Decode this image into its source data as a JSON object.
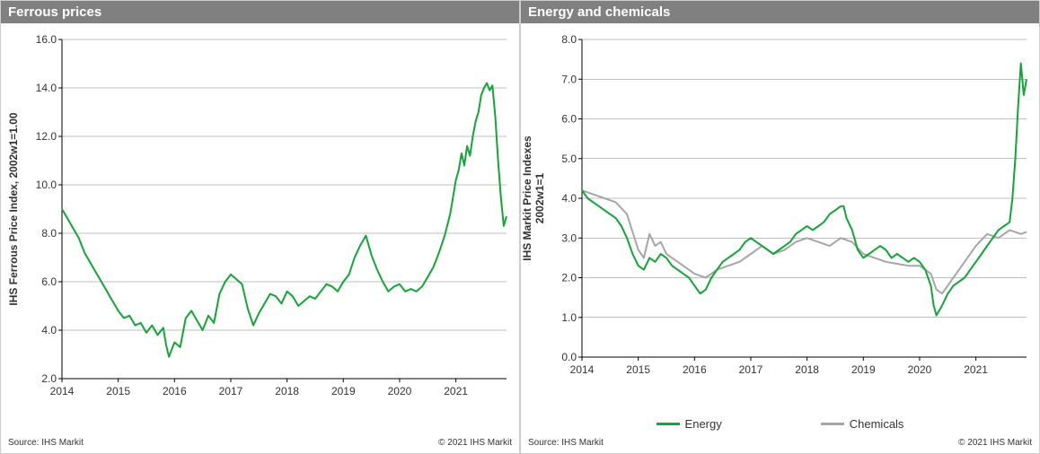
{
  "panels": {
    "ferrous": {
      "title": "Ferrous prices",
      "type": "line",
      "yaxis_label": "IHS Ferrous Price Index, 2002w1=1.00",
      "axis_color": "#000000",
      "grid_color": "#808080",
      "background_color": "#ffffff",
      "title_bg": "#808080",
      "title_color": "#ffffff",
      "line_color": "#13a538",
      "line_width": 2,
      "title_fontsize": 15,
      "axis_fontsize": 12,
      "tick_fontsize": 12,
      "xlim": [
        2014,
        2021.9
      ],
      "ylim": [
        2.0,
        16.0
      ],
      "xticks": [
        2014,
        2015,
        2016,
        2017,
        2018,
        2019,
        2020,
        2021
      ],
      "xticklabels": [
        "2014",
        "2015",
        "2016",
        "2017",
        "2018",
        "2019",
        "2020",
        "2021"
      ],
      "yticks": [
        2.0,
        4.0,
        6.0,
        8.0,
        10.0,
        12.0,
        14.0,
        16.0
      ],
      "yticklabels": [
        "2.0",
        "4.0",
        "6.0",
        "8.0",
        "10.0",
        "12.0",
        "14.0",
        "16.0"
      ],
      "series": [
        {
          "name": "Ferrous",
          "color": "#13a538",
          "x": [
            2014.0,
            2014.1,
            2014.2,
            2014.3,
            2014.4,
            2014.5,
            2014.6,
            2014.7,
            2014.8,
            2014.9,
            2015.0,
            2015.1,
            2015.2,
            2015.3,
            2015.4,
            2015.5,
            2015.6,
            2015.7,
            2015.8,
            2015.85,
            2015.9,
            2016.0,
            2016.1,
            2016.2,
            2016.3,
            2016.4,
            2016.5,
            2016.6,
            2016.7,
            2016.8,
            2016.9,
            2017.0,
            2017.1,
            2017.2,
            2017.3,
            2017.4,
            2017.5,
            2017.6,
            2017.7,
            2017.8,
            2017.9,
            2018.0,
            2018.1,
            2018.2,
            2018.3,
            2018.4,
            2018.5,
            2018.6,
            2018.7,
            2018.8,
            2018.9,
            2019.0,
            2019.1,
            2019.2,
            2019.3,
            2019.4,
            2019.5,
            2019.6,
            2019.7,
            2019.8,
            2019.9,
            2020.0,
            2020.1,
            2020.2,
            2020.3,
            2020.4,
            2020.5,
            2020.6,
            2020.7,
            2020.8,
            2020.9,
            2021.0,
            2021.05,
            2021.1,
            2021.15,
            2021.2,
            2021.25,
            2021.3,
            2021.35,
            2021.4,
            2021.45,
            2021.5,
            2021.55,
            2021.6,
            2021.65,
            2021.7,
            2021.75,
            2021.8,
            2021.85,
            2021.9
          ],
          "y": [
            9.0,
            8.6,
            8.2,
            7.8,
            7.2,
            6.8,
            6.4,
            6.0,
            5.6,
            5.2,
            4.8,
            4.5,
            4.6,
            4.2,
            4.3,
            3.9,
            4.2,
            3.8,
            4.1,
            3.4,
            2.9,
            3.5,
            3.3,
            4.5,
            4.8,
            4.4,
            4.0,
            4.6,
            4.3,
            5.5,
            6.0,
            6.3,
            6.1,
            5.9,
            4.9,
            4.2,
            4.7,
            5.1,
            5.5,
            5.4,
            5.1,
            5.6,
            5.4,
            5.0,
            5.2,
            5.4,
            5.3,
            5.6,
            5.9,
            5.8,
            5.6,
            6.0,
            6.3,
            7.0,
            7.5,
            7.9,
            7.1,
            6.5,
            6.0,
            5.6,
            5.8,
            5.9,
            5.6,
            5.7,
            5.6,
            5.8,
            6.2,
            6.6,
            7.2,
            7.9,
            8.8,
            10.2,
            10.6,
            11.3,
            10.8,
            11.6,
            11.2,
            12.0,
            12.6,
            13.0,
            13.7,
            14.0,
            14.2,
            13.9,
            14.1,
            12.8,
            11.0,
            9.5,
            8.3,
            8.7
          ]
        }
      ],
      "source_label": "Source: IHS Markit",
      "copyright_label": "© 2021 IHS Markit"
    },
    "energy": {
      "title": "Energy and chemicals",
      "type": "line",
      "yaxis_label": "IHS Markit Price Indexes\n2002w1=1",
      "axis_color": "#000000",
      "grid_color": "#808080",
      "background_color": "#ffffff",
      "title_bg": "#808080",
      "title_color": "#ffffff",
      "line_width": 2,
      "title_fontsize": 15,
      "axis_fontsize": 12,
      "tick_fontsize": 12,
      "xlim": [
        2014,
        2021.9
      ],
      "ylim": [
        0.0,
        8.0
      ],
      "xticks": [
        2014,
        2015,
        2016,
        2017,
        2018,
        2019,
        2020,
        2021
      ],
      "xticklabels": [
        "2014",
        "2015",
        "2016",
        "2017",
        "2018",
        "2019",
        "2020",
        "2021"
      ],
      "yticks": [
        0.0,
        1.0,
        2.0,
        3.0,
        4.0,
        5.0,
        6.0,
        7.0,
        8.0
      ],
      "yticklabels": [
        "0.0",
        "1.0",
        "2.0",
        "3.0",
        "4.0",
        "5.0",
        "6.0",
        "7.0",
        "8.0"
      ],
      "legend": [
        {
          "label": "Energy",
          "color": "#13a538"
        },
        {
          "label": "Chemicals",
          "color": "#a6a6a6"
        }
      ],
      "series": [
        {
          "name": "Chemicals",
          "color": "#a6a6a6",
          "x": [
            2014.0,
            2014.2,
            2014.4,
            2014.6,
            2014.8,
            2015.0,
            2015.1,
            2015.2,
            2015.3,
            2015.4,
            2015.5,
            2015.6,
            2015.8,
            2016.0,
            2016.2,
            2016.4,
            2016.6,
            2016.8,
            2017.0,
            2017.2,
            2017.4,
            2017.6,
            2017.8,
            2018.0,
            2018.2,
            2018.4,
            2018.6,
            2018.8,
            2019.0,
            2019.2,
            2019.4,
            2019.6,
            2019.8,
            2020.0,
            2020.2,
            2020.3,
            2020.4,
            2020.5,
            2020.6,
            2020.8,
            2021.0,
            2021.2,
            2021.4,
            2021.6,
            2021.8,
            2021.9
          ],
          "y": [
            4.2,
            4.1,
            4.0,
            3.9,
            3.6,
            2.7,
            2.5,
            3.1,
            2.8,
            2.9,
            2.6,
            2.5,
            2.3,
            2.1,
            2.0,
            2.2,
            2.3,
            2.4,
            2.6,
            2.8,
            2.6,
            2.7,
            2.9,
            3.0,
            2.9,
            2.8,
            3.0,
            2.9,
            2.6,
            2.5,
            2.4,
            2.35,
            2.3,
            2.3,
            2.1,
            1.7,
            1.6,
            1.8,
            2.0,
            2.4,
            2.8,
            3.1,
            3.0,
            3.2,
            3.1,
            3.15
          ]
        },
        {
          "name": "Energy",
          "color": "#13a538",
          "x": [
            2014.0,
            2014.1,
            2014.2,
            2014.3,
            2014.4,
            2014.5,
            2014.6,
            2014.7,
            2014.8,
            2014.9,
            2015.0,
            2015.1,
            2015.2,
            2015.3,
            2015.4,
            2015.5,
            2015.6,
            2015.7,
            2015.8,
            2015.9,
            2016.0,
            2016.1,
            2016.2,
            2016.3,
            2016.4,
            2016.5,
            2016.6,
            2016.7,
            2016.8,
            2016.9,
            2017.0,
            2017.1,
            2017.2,
            2017.3,
            2017.4,
            2017.5,
            2017.6,
            2017.7,
            2017.8,
            2017.9,
            2018.0,
            2018.1,
            2018.2,
            2018.3,
            2018.4,
            2018.5,
            2018.6,
            2018.65,
            2018.7,
            2018.8,
            2018.9,
            2019.0,
            2019.1,
            2019.2,
            2019.3,
            2019.4,
            2019.5,
            2019.6,
            2019.7,
            2019.8,
            2019.9,
            2020.0,
            2020.1,
            2020.2,
            2020.25,
            2020.3,
            2020.4,
            2020.5,
            2020.6,
            2020.7,
            2020.8,
            2020.9,
            2021.0,
            2021.1,
            2021.2,
            2021.3,
            2021.4,
            2021.5,
            2021.55,
            2021.6,
            2021.65,
            2021.7,
            2021.75,
            2021.8,
            2021.85,
            2021.9
          ],
          "y": [
            4.2,
            4.0,
            3.9,
            3.8,
            3.7,
            3.6,
            3.5,
            3.3,
            3.0,
            2.6,
            2.3,
            2.2,
            2.5,
            2.4,
            2.6,
            2.5,
            2.3,
            2.2,
            2.1,
            2.0,
            1.8,
            1.6,
            1.7,
            2.0,
            2.2,
            2.4,
            2.5,
            2.6,
            2.7,
            2.9,
            3.0,
            2.9,
            2.8,
            2.7,
            2.6,
            2.7,
            2.8,
            2.9,
            3.1,
            3.2,
            3.3,
            3.2,
            3.3,
            3.4,
            3.6,
            3.7,
            3.8,
            3.8,
            3.5,
            3.2,
            2.7,
            2.5,
            2.6,
            2.7,
            2.8,
            2.7,
            2.5,
            2.6,
            2.5,
            2.4,
            2.5,
            2.4,
            2.2,
            1.8,
            1.3,
            1.05,
            1.3,
            1.6,
            1.8,
            1.9,
            2.0,
            2.2,
            2.4,
            2.6,
            2.8,
            3.0,
            3.2,
            3.3,
            3.35,
            3.4,
            4.0,
            5.0,
            6.3,
            7.4,
            6.6,
            7.0
          ]
        }
      ],
      "source_label": "Source: IHS Markit",
      "copyright_label": "© 2021 IHS Markit"
    }
  }
}
